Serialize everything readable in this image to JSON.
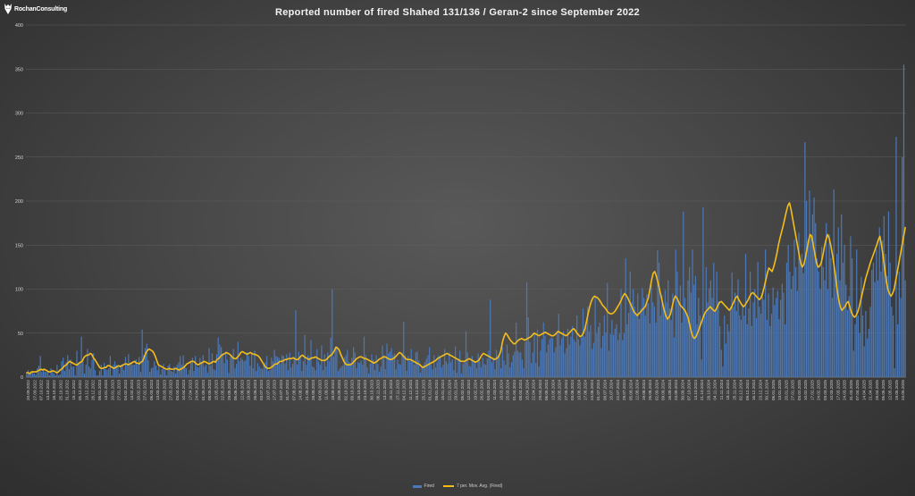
{
  "brand": {
    "logo_text": "RochanConsulting"
  },
  "colors": {
    "background": "#474747",
    "bars": "#4a78b8",
    "moving_average": "#f2bd1c",
    "grid": "#5e5e5e",
    "axis_text": "#d0d0d0"
  },
  "chart_data": {
    "type": "bar",
    "title": "Reported number of fired Shahed 131/136 / Geran-2 since September 2022",
    "xlabel": "",
    "ylabel": "",
    "ylim": [
      0,
      400
    ],
    "yticks": [
      0,
      50,
      100,
      150,
      200,
      250,
      300,
      350,
      400
    ],
    "grid": true,
    "legend_position": "bottom",
    "x_start_date": "20.09.2022",
    "x_end_date": "24.05.2025",
    "x_tick_labels": [
      "20.09.2022",
      "27.09.2022",
      "07.10.2022",
      "13.10.2022",
      "18.10.2022",
      "25.10.2022",
      "31.10.2022",
      "15.11.2022",
      "05.12.2022",
      "19.12.2022",
      "26.12.2022",
      "06.01.2023",
      "13.01.2023",
      "20.01.2023",
      "27.01.2023",
      "04.02.2023",
      "13.02.2023",
      "20.02.2023",
      "27.02.2023",
      "06.03.2023",
      "13.03.2023",
      "20.03.2023",
      "27.03.2023",
      "03.04.2023",
      "10.04.2023",
      "17.04.2023",
      "24.04.2023",
      "01.05.2023",
      "08.05.2023",
      "15.05.2023",
      "22.05.2023",
      "29.05.2023",
      "05.06.2023",
      "12.06.2023",
      "19.06.2023",
      "26.06.2023",
      "03.07.2023",
      "10.07.2023",
      "17.07.2023",
      "24.07.2023",
      "31.07.2023",
      "07.08.2023",
      "14.08.2023",
      "21.08.2023",
      "28.08.2023",
      "04.09.2023",
      "11.09.2023",
      "18.09.2023",
      "25.09.2023",
      "02.10.2023",
      "09.10.2023",
      "16.10.2023",
      "23.10.2023",
      "30.10.2023",
      "06.11.2023",
      "13.11.2023",
      "20.11.2023",
      "27.11.2023",
      "04.12.2023",
      "11.12.2023",
      "18.12.2023",
      "25.12.2023",
      "01.01.2024",
      "08.01.2024",
      "15.01.2024",
      "22.01.2024",
      "29.01.2024",
      "05.02.2024",
      "12.02.2024",
      "19.02.2024",
      "26.02.2024",
      "04.03.2024",
      "11.03.2024",
      "18.03.2024",
      "25.03.2024",
      "01.04.2024",
      "08.04.2024",
      "15.04.2024",
      "22.04.2024",
      "29.04.2024",
      "06.05.2024",
      "13.05.2024",
      "20.05.2024",
      "27.05.2024",
      "03.06.2024",
      "10.06.2024",
      "17.06.2024",
      "24.06.2024",
      "01.07.2024",
      "08.07.2024",
      "15.07.2024",
      "22.07.2024",
      "29.07.2024",
      "05.08.2024",
      "12.08.2024",
      "19.08.2024",
      "26.08.2024",
      "02.09.2024",
      "09.09.2024",
      "16.09.2024",
      "23.09.2024",
      "30.09.2024",
      "07.10.2024",
      "14.10.2024",
      "21.10.2024",
      "28.10.2024",
      "04.11.2024",
      "11.11.2024",
      "18.11.2024",
      "25.11.2024",
      "02.12.2024",
      "09.12.2024",
      "16.12.2024",
      "23.12.2024",
      "30.12.2024",
      "06.01.2025",
      "13.01.2025",
      "20.01.2025",
      "27.01.2025",
      "03.02.2025",
      "10.02.2025",
      "17.02.2025",
      "24.02.2025",
      "03.03.2025",
      "10.03.2025",
      "17.03.2025",
      "24.03.2025",
      "31.03.2025",
      "07.04.2025",
      "14.04.2025",
      "21.04.2025",
      "28.04.2025",
      "05.05.2025",
      "12.05.2025",
      "19.05.2025",
      "24.05.2025"
    ],
    "series": [
      {
        "name": "Fired",
        "kind": "bar",
        "values": [
          4,
          8,
          4,
          6,
          6,
          4,
          3,
          10,
          13,
          24,
          6,
          9,
          6,
          6,
          6,
          2,
          10,
          8,
          4,
          2,
          14,
          2,
          3,
          18,
          22,
          7,
          17,
          25,
          9,
          20,
          12,
          12,
          2,
          30,
          16,
          17,
          46,
          17,
          4,
          14,
          32,
          12,
          10,
          20,
          27,
          8,
          2,
          2,
          7,
          14,
          2,
          16,
          9,
          8,
          10,
          24,
          2,
          14,
          18,
          14,
          13,
          4,
          14,
          15,
          8,
          23,
          14,
          26,
          16,
          17,
          14,
          14,
          20,
          15,
          23,
          6,
          54,
          25,
          33,
          38,
          19,
          6,
          10,
          11,
          18,
          13,
          8,
          14,
          3,
          9,
          15,
          8,
          2,
          13,
          15,
          7,
          6,
          12,
          4,
          14,
          17,
          24,
          14,
          25,
          13,
          10,
          3,
          8,
          17,
          22,
          7,
          24,
          12,
          11,
          22,
          17,
          25,
          12,
          14,
          5,
          33,
          13,
          27,
          9,
          8,
          26,
          45,
          37,
          34,
          27,
          16,
          29,
          20,
          5,
          23,
          25,
          32,
          10,
          15,
          40,
          18,
          22,
          20,
          18,
          19,
          28,
          24,
          13,
          27,
          10,
          30,
          7,
          16,
          12,
          10,
          9,
          15,
          17,
          24,
          7,
          8,
          22,
          18,
          31,
          24,
          23,
          22,
          15,
          25,
          24,
          15,
          26,
          8,
          28,
          11,
          15,
          23,
          76,
          14,
          29,
          22,
          7,
          18,
          48,
          14,
          25,
          23,
          42,
          12,
          11,
          8,
          32,
          18,
          14,
          36,
          8,
          26,
          12,
          28,
          18,
          45,
          100,
          23,
          33,
          35,
          7,
          10,
          12,
          13,
          22,
          25,
          31,
          17,
          16,
          22,
          34,
          28,
          10,
          17,
          16,
          19,
          14,
          46,
          25,
          11,
          4,
          15,
          26,
          20,
          8,
          25,
          15,
          6,
          12,
          36,
          25,
          9,
          38,
          27,
          29,
          33,
          25,
          27,
          9,
          20,
          15,
          14,
          28,
          63,
          25,
          7,
          24,
          18,
          32,
          20,
          14,
          28,
          29,
          19,
          5,
          12,
          14,
          17,
          21,
          25,
          34,
          14,
          9,
          25,
          11,
          17,
          25,
          22,
          11,
          14,
          32,
          18,
          15,
          28,
          17,
          20,
          8,
          35,
          5,
          21,
          30,
          4,
          15,
          17,
          52,
          28,
          13,
          12,
          24,
          19,
          16,
          10,
          27,
          18,
          11,
          22,
          15,
          14,
          21,
          30,
          88,
          17,
          22,
          9,
          31,
          25,
          24,
          10,
          34,
          19,
          14,
          37,
          27,
          11,
          17,
          25,
          29,
          62,
          30,
          28,
          28,
          20,
          10,
          40,
          108,
          68,
          40,
          16,
          28,
          50,
          16,
          54,
          12,
          30,
          43,
          62,
          47,
          28,
          37,
          43,
          45,
          44,
          28,
          34,
          50,
          72,
          36,
          44,
          52,
          27,
          33,
          55,
          37,
          46,
          58,
          43,
          40,
          70,
          43,
          36,
          45,
          78,
          46,
          58,
          80,
          52,
          59,
          32,
          39,
          92,
          50,
          57,
          62,
          33,
          47,
          70,
          51,
          107,
          30,
          49,
          65,
          48,
          55,
          60,
          42,
          50,
          100,
          42,
          50,
          135,
          60,
          73,
          120,
          85,
          100,
          80,
          70,
          95,
          66,
          78,
          101,
          90,
          70,
          94,
          84,
          61,
          105,
          85,
          80,
          62,
          144,
          130,
          70,
          93,
          80,
          99,
          85,
          110,
          78,
          65,
          95,
          45,
          145,
          120,
          85,
          104,
          62,
          188,
          90,
          70,
          110,
          125,
          96,
          145,
          105,
          115,
          60,
          90,
          70,
          20,
          193,
          70,
          125,
          85,
          101,
          110,
          90,
          130,
          76,
          120,
          86,
          58,
          31,
          12,
          70,
          38,
          60,
          52,
          80,
          119,
          80,
          96,
          75,
          111,
          70,
          65,
          83,
          70,
          140,
          60,
          78,
          120,
          58,
          85,
          100,
          67,
          131,
          80,
          72,
          95,
          88,
          145,
          65,
          95,
          58,
          72,
          102,
          82,
          90,
          98,
          66,
          88,
          106,
          96,
          60,
          130,
          150,
          120,
          100,
          115,
          156,
          125,
          98,
          164,
          130,
          140,
          118,
          267,
          200,
          155,
          212,
          160,
          185,
          204,
          175,
          135,
          120,
          100,
          148,
          125,
          110,
          175,
          100,
          162,
          135,
          90,
          213,
          120,
          140,
          170,
          110,
          185,
          130,
          150,
          105,
          76,
          92,
          160,
          135,
          30,
          60,
          145,
          70,
          50,
          114,
          70,
          35,
          75,
          44,
          55,
          80,
          122,
          130,
          108,
          145,
          110,
          170,
          120,
          155,
          183,
          140,
          115,
          188,
          130,
          80,
          70,
          10,
          273,
          60,
          120,
          90,
          250,
          355,
          110
        ]
      },
      {
        "name": "7 per. Mov. Avg. (Fired)",
        "kind": "line",
        "values": [
          5,
          5,
          4,
          6,
          6,
          6,
          6,
          7,
          8,
          9,
          8,
          9,
          8,
          7,
          6,
          6,
          7,
          7,
          6,
          5,
          6,
          8,
          9,
          11,
          13,
          14,
          16,
          18,
          17,
          16,
          15,
          14,
          14,
          16,
          17,
          18,
          22,
          24,
          25,
          25,
          27,
          26,
          22,
          20,
          17,
          14,
          11,
          10,
          10,
          11,
          11,
          13,
          13,
          12,
          11,
          10,
          11,
          12,
          13,
          12,
          13,
          14,
          15,
          15,
          14,
          15,
          16,
          17,
          18,
          16,
          16,
          15,
          17,
          18,
          22,
          27,
          30,
          32,
          31,
          30,
          28,
          24,
          19,
          14,
          13,
          12,
          11,
          10,
          9,
          9,
          10,
          9,
          9,
          9,
          10,
          9,
          8,
          9,
          10,
          11,
          13,
          15,
          16,
          17,
          18,
          18,
          17,
          15,
          14,
          15,
          16,
          17,
          18,
          17,
          16,
          15,
          16,
          17,
          18,
          17,
          20,
          21,
          23,
          25,
          26,
          27,
          28,
          27,
          26,
          24,
          22,
          21,
          21,
          23,
          25,
          28,
          29,
          28,
          27,
          26,
          27,
          28,
          27,
          26,
          26,
          25,
          24,
          22,
          19,
          16,
          13,
          11,
          10,
          10,
          11,
          12,
          14,
          15,
          15,
          17,
          18,
          18,
          19,
          20,
          20,
          21,
          21,
          21,
          22,
          21,
          20,
          20,
          22,
          24,
          25,
          23,
          22,
          21,
          20,
          21,
          22,
          22,
          23,
          22,
          21,
          20,
          19,
          19,
          19,
          20,
          22,
          24,
          25,
          27,
          30,
          34,
          33,
          31,
          26,
          22,
          18,
          15,
          14,
          14,
          14,
          15,
          17,
          19,
          21,
          22,
          23,
          23,
          22,
          21,
          21,
          20,
          19,
          18,
          17,
          16,
          17,
          18,
          20,
          21,
          22,
          23,
          23,
          22,
          21,
          20,
          20,
          21,
          22,
          24,
          26,
          28,
          27,
          25,
          23,
          21,
          20,
          20,
          20,
          19,
          18,
          17,
          16,
          15,
          14,
          12,
          11,
          12,
          13,
          14,
          15,
          16,
          17,
          18,
          19,
          21,
          22,
          23,
          24,
          25,
          26,
          27,
          26,
          25,
          24,
          23,
          22,
          21,
          20,
          19,
          18,
          18,
          18,
          19,
          20,
          21,
          20,
          19,
          18,
          17,
          18,
          19,
          22,
          25,
          27,
          26,
          25,
          24,
          23,
          22,
          21,
          20,
          21,
          22,
          25,
          30,
          40,
          46,
          50,
          48,
          45,
          42,
          40,
          38,
          38,
          40,
          42,
          43,
          44,
          43,
          42,
          43,
          44,
          45,
          46,
          48,
          50,
          49,
          48,
          47,
          48,
          49,
          50,
          51,
          50,
          49,
          48,
          47,
          47,
          48,
          50,
          52,
          51,
          50,
          49,
          48,
          47,
          48,
          50,
          52,
          54,
          55,
          53,
          50,
          48,
          46,
          47,
          50,
          55,
          63,
          72,
          80,
          86,
          90,
          92,
          91,
          90,
          88,
          85,
          82,
          80,
          78,
          75,
          73,
          72,
          72,
          73,
          75,
          78,
          81,
          84,
          88,
          92,
          95,
          93,
          90,
          86,
          82,
          78,
          74,
          72,
          70,
          72,
          74,
          76,
          78,
          80,
          85,
          90,
          100,
          110,
          118,
          120,
          115,
          108,
          100,
          92,
          84,
          76,
          70,
          66,
          68,
          72,
          80,
          88,
          92,
          90,
          86,
          82,
          80,
          78,
          76,
          72,
          68,
          60,
          52,
          46,
          44,
          46,
          50,
          55,
          60,
          65,
          70,
          74,
          76,
          78,
          80,
          78,
          76,
          75,
          78,
          82,
          85,
          86,
          84,
          82,
          80,
          78,
          76,
          78,
          82,
          86,
          90,
          92,
          88,
          85,
          82,
          80,
          82,
          85,
          88,
          92,
          95,
          96,
          94,
          92,
          90,
          88,
          90,
          95,
          102,
          110,
          118,
          124,
          122,
          120,
          125,
          132,
          140,
          150,
          158,
          165,
          172,
          180,
          188,
          195,
          198,
          190,
          180,
          170,
          160,
          150,
          140,
          130,
          125,
          128,
          135,
          145,
          155,
          162,
          160,
          150,
          140,
          130,
          125,
          126,
          130,
          138,
          148,
          156,
          162,
          158,
          150,
          140,
          128,
          115,
          100,
          88,
          80,
          76,
          78,
          80,
          84,
          86,
          80,
          74,
          70,
          68,
          70,
          74,
          80,
          88,
          96,
          104,
          112,
          118,
          124,
          130,
          135,
          140,
          145,
          150,
          156,
          160,
          150,
          138,
          124,
          110,
          100,
          95,
          92,
          95,
          100,
          110,
          120,
          130,
          140,
          150,
          160,
          170
        ]
      }
    ]
  },
  "legend": {
    "fired": "Fired",
    "mov_avg": "7 per. Mov. Avg. (Fired)"
  }
}
